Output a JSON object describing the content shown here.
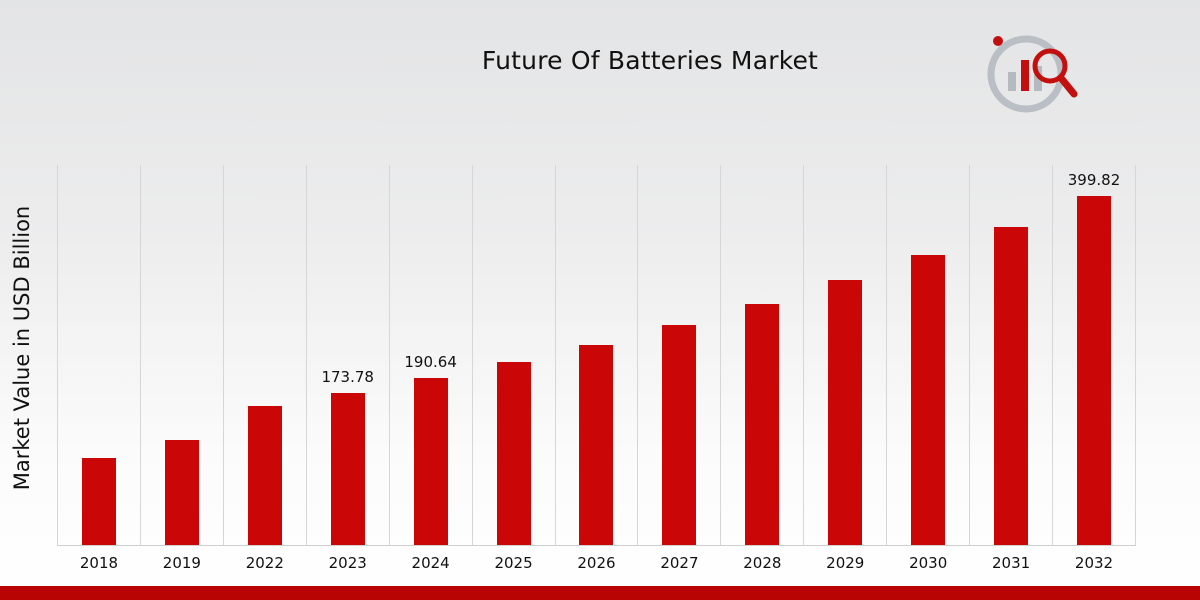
{
  "title": "Future Of Batteries Market",
  "ylabel": "Market Value in USD Billion",
  "colors": {
    "bar": "#cb0606",
    "footer_bar": "#b90404",
    "gridline": "#d6d6d6",
    "background_top": "#e3e4e5",
    "background_bottom": "#ffffff",
    "text": "#111111"
  },
  "logo": {
    "icon": "bar-chart-magnifier-logo"
  },
  "chart_data": {
    "type": "bar",
    "title": "Future Of Batteries Market",
    "xlabel": "",
    "ylabel": "Market Value in USD Billion",
    "categories": [
      "2018",
      "2019",
      "2022",
      "2023",
      "2024",
      "2025",
      "2026",
      "2027",
      "2028",
      "2029",
      "2030",
      "2031",
      "2032"
    ],
    "values": [
      99.5,
      120.1,
      159.0,
      173.78,
      190.64,
      209.1,
      229.4,
      251.7,
      276.1,
      302.9,
      332.3,
      364.5,
      399.82
    ],
    "data_labels": {
      "2023": "173.78",
      "2024": "190.64",
      "2032": "399.82"
    },
    "ylim": [
      0,
      435
    ],
    "grid": "vertical",
    "legend": "none",
    "bar_color": "#cb0606"
  }
}
